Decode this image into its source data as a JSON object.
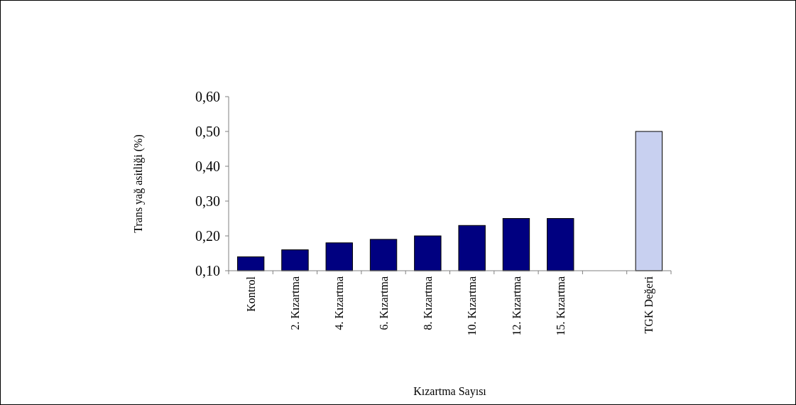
{
  "chart_data": {
    "type": "bar",
    "xlabel": "Kızartma Sayısı",
    "ylabel": "Trans yağ asitliği  (%)",
    "categories": [
      "Kontrol",
      "2. Kızartma",
      "4. Kızartma",
      "6. Kızartma",
      "8. Kızartma",
      "10. Kızartma",
      "12. Kızartma",
      "15. Kızartma",
      null,
      "TGK Değeri"
    ],
    "values": [
      0.14,
      0.16,
      0.18,
      0.19,
      0.2,
      0.23,
      0.25,
      0.25,
      null,
      0.5
    ],
    "colors": [
      "#000080",
      "#000080",
      "#000080",
      "#000080",
      "#000080",
      "#000080",
      "#000080",
      "#000080",
      null,
      "#c8d0f0"
    ],
    "ylim": [
      0.1,
      0.6
    ],
    "yticks": [
      {
        "value": 0.1,
        "label": "0,10"
      },
      {
        "value": 0.2,
        "label": "0,20"
      },
      {
        "value": 0.3,
        "label": "0,30"
      },
      {
        "value": 0.4,
        "label": "0,40"
      },
      {
        "value": 0.5,
        "label": "0,50"
      },
      {
        "value": 0.6,
        "label": "0,60"
      }
    ],
    "grid": false
  }
}
